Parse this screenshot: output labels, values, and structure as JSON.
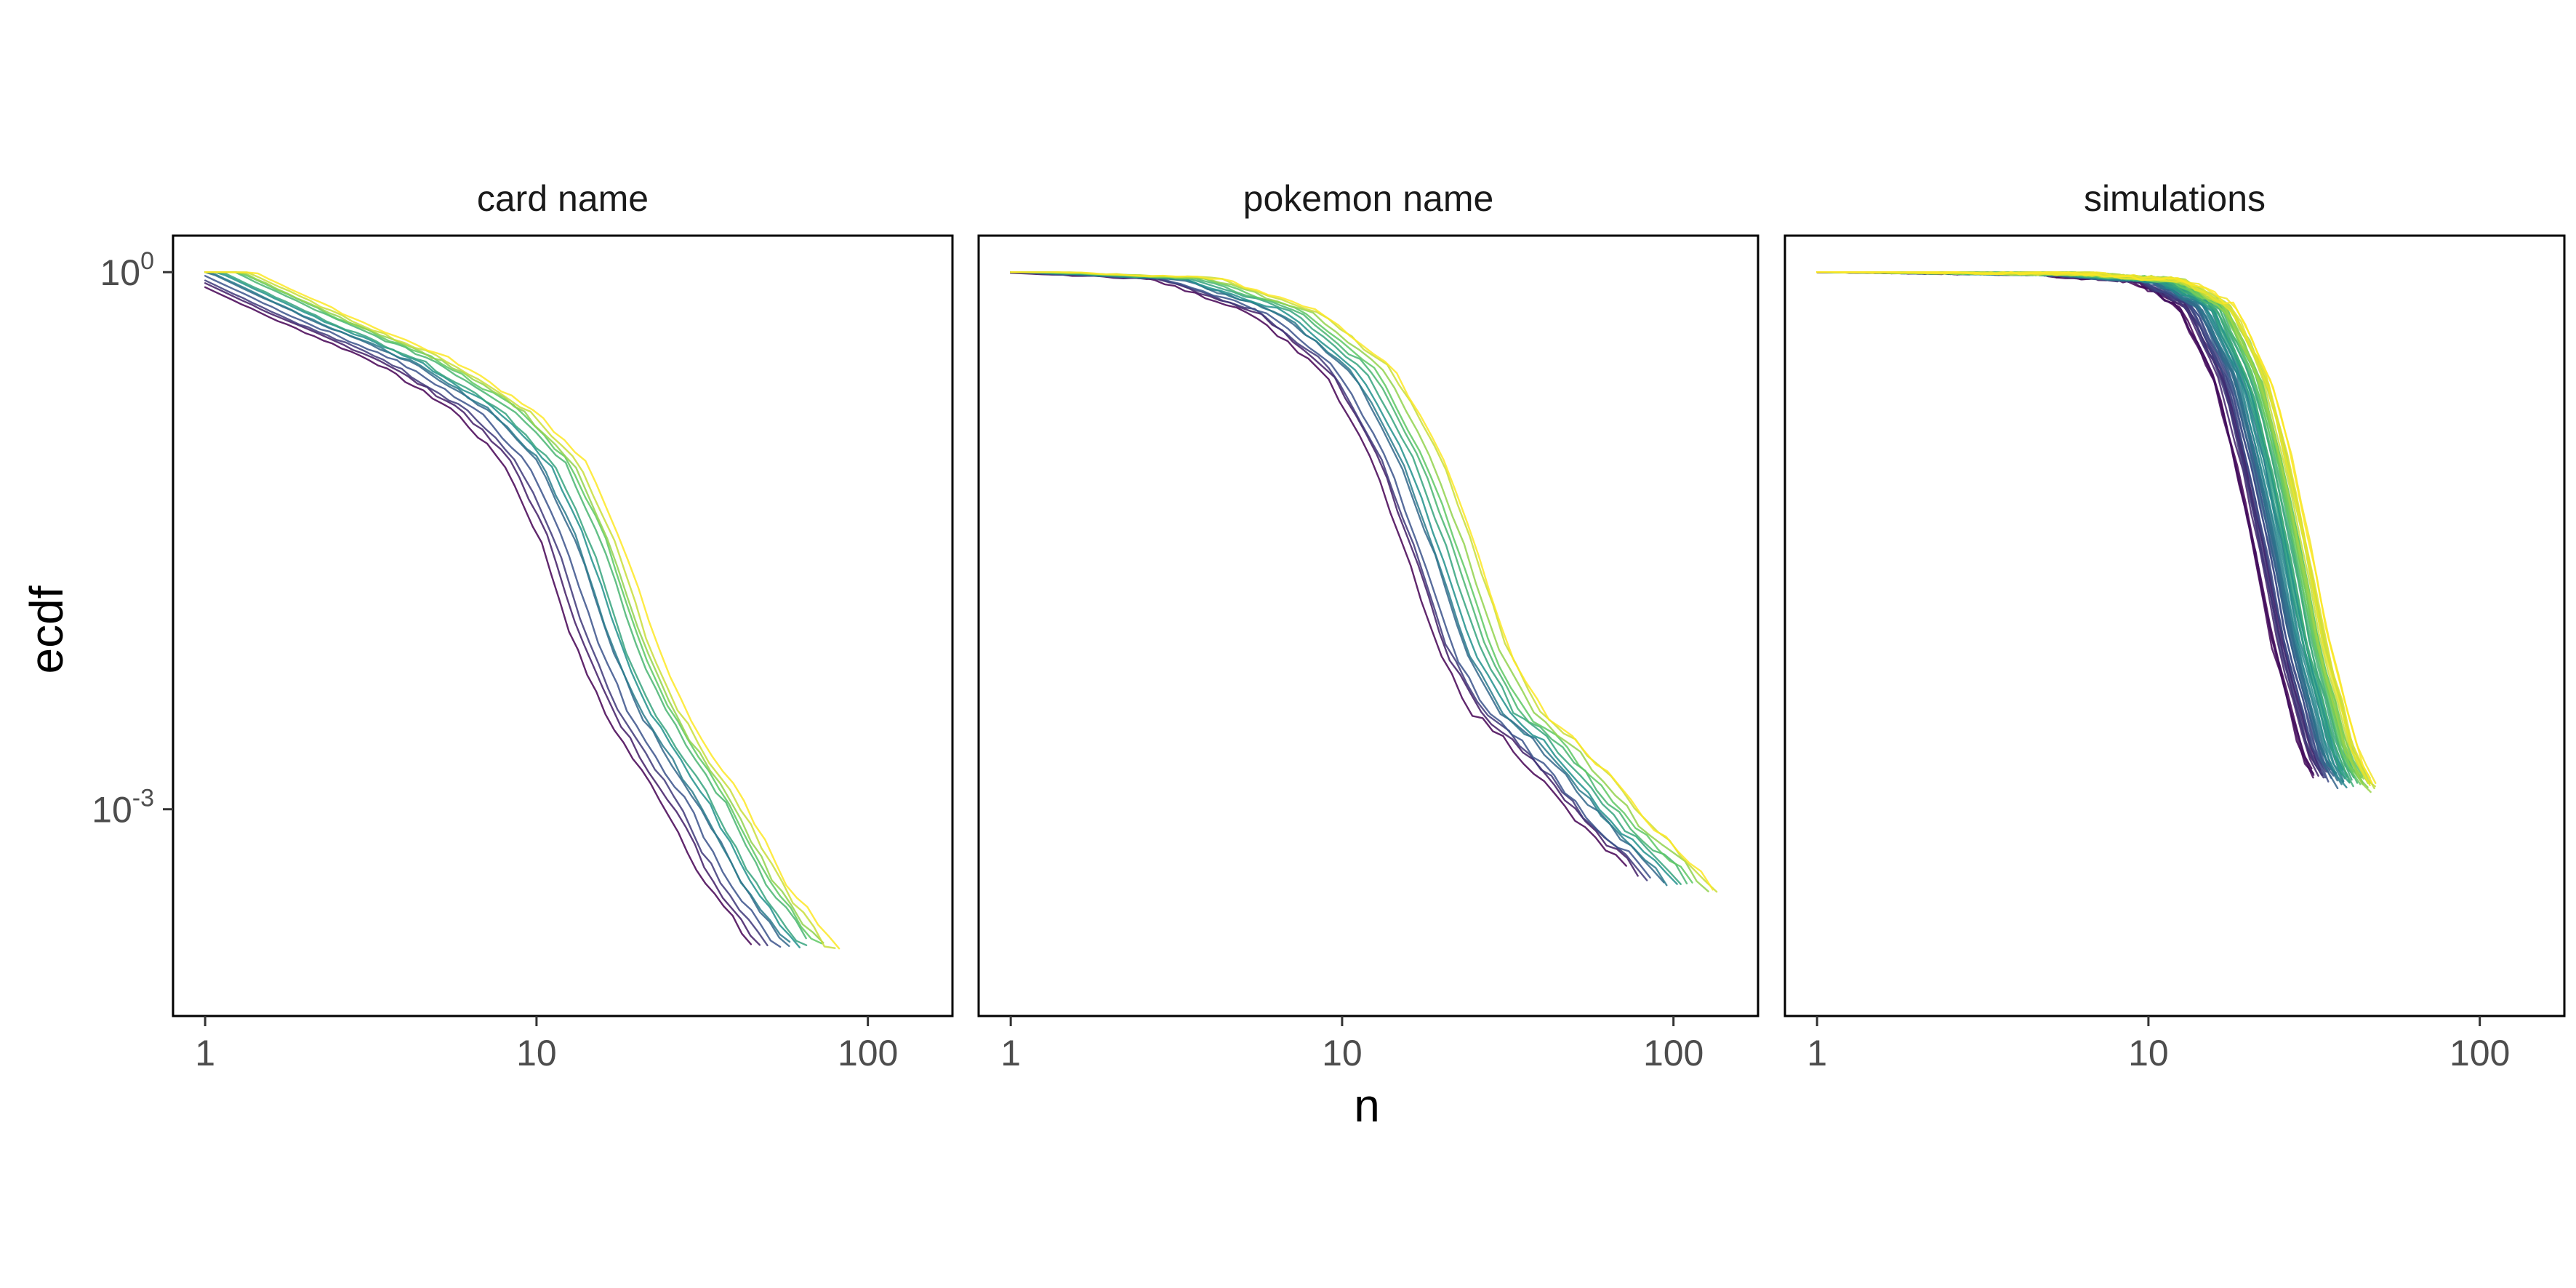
{
  "chart_data": {
    "type": "line",
    "xlabel": "n",
    "ylabel": "ecdf",
    "x_scale": "log10",
    "y_scale": "log10",
    "xlim": [
      0.8,
      180
    ],
    "ylim": [
      7e-05,
      1.6
    ],
    "x_ticks": [
      {
        "value": 1,
        "label": "1"
      },
      {
        "value": 10,
        "label": "10"
      },
      {
        "value": 100,
        "label": "100"
      }
    ],
    "y_ticks": [
      {
        "value": 1,
        "base": "10",
        "exp": "0"
      },
      {
        "value": 0.001,
        "base": "10",
        "exp": "-3"
      }
    ],
    "grid": false,
    "legend": "none",
    "colormap": [
      "#440154",
      "#3b528b",
      "#21908c",
      "#5dc863",
      "#fde725"
    ],
    "facets": [
      {
        "title": "card name",
        "n_series": 13,
        "curve": {
          "base": [
            [
              1,
              1.0
            ],
            [
              2,
              0.55
            ],
            [
              4,
              0.32
            ],
            [
              7,
              0.17
            ],
            [
              10,
              0.085
            ],
            [
              13,
              0.03
            ],
            [
              16,
              0.009
            ],
            [
              20,
              0.0035
            ],
            [
              25,
              0.0018
            ],
            [
              30,
              0.0011
            ],
            [
              40,
              0.0004
            ],
            [
              55,
              0.00018
            ],
            [
              75,
              0.00011
            ],
            [
              80,
              0.0001
            ]
          ],
          "shift_min": 0.8,
          "shift_max": 1.4,
          "ends_min": 38,
          "ends_max": 80
        }
      },
      {
        "title": "pokemon name",
        "n_series": 13,
        "curve": {
          "base": [
            [
              1,
              1.0
            ],
            [
              3,
              0.92
            ],
            [
              6,
              0.6
            ],
            [
              10,
              0.28
            ],
            [
              14,
              0.09
            ],
            [
              18,
              0.025
            ],
            [
              22,
              0.008
            ],
            [
              28,
              0.0035
            ],
            [
              35,
              0.0025
            ],
            [
              45,
              0.0015
            ],
            [
              60,
              0.0008
            ],
            [
              80,
              0.0005
            ],
            [
              100,
              0.0003
            ],
            [
              125,
              0.0002
            ],
            [
              135,
              0.00018
            ]
          ],
          "shift_min": 0.85,
          "shift_max": 1.45,
          "ends_min": 60,
          "ends_max": 135
        }
      },
      {
        "title": "simulations",
        "n_series": 60,
        "curve": {
          "base": [
            [
              1,
              1.0
            ],
            [
              5,
              0.98
            ],
            [
              10,
              0.9
            ],
            [
              14,
              0.65
            ],
            [
              18,
              0.25
            ],
            [
              21,
              0.08
            ],
            [
              24,
              0.025
            ],
            [
              27,
              0.008
            ],
            [
              30,
              0.004
            ],
            [
              33,
              0.002
            ],
            [
              36,
              0.0015
            ],
            [
              40,
              0.0012
            ],
            [
              45,
              0.001
            ]
          ],
          "shift_min": 0.88,
          "shift_max": 1.3,
          "ends_min": 28,
          "ends_max": 48
        }
      }
    ]
  }
}
